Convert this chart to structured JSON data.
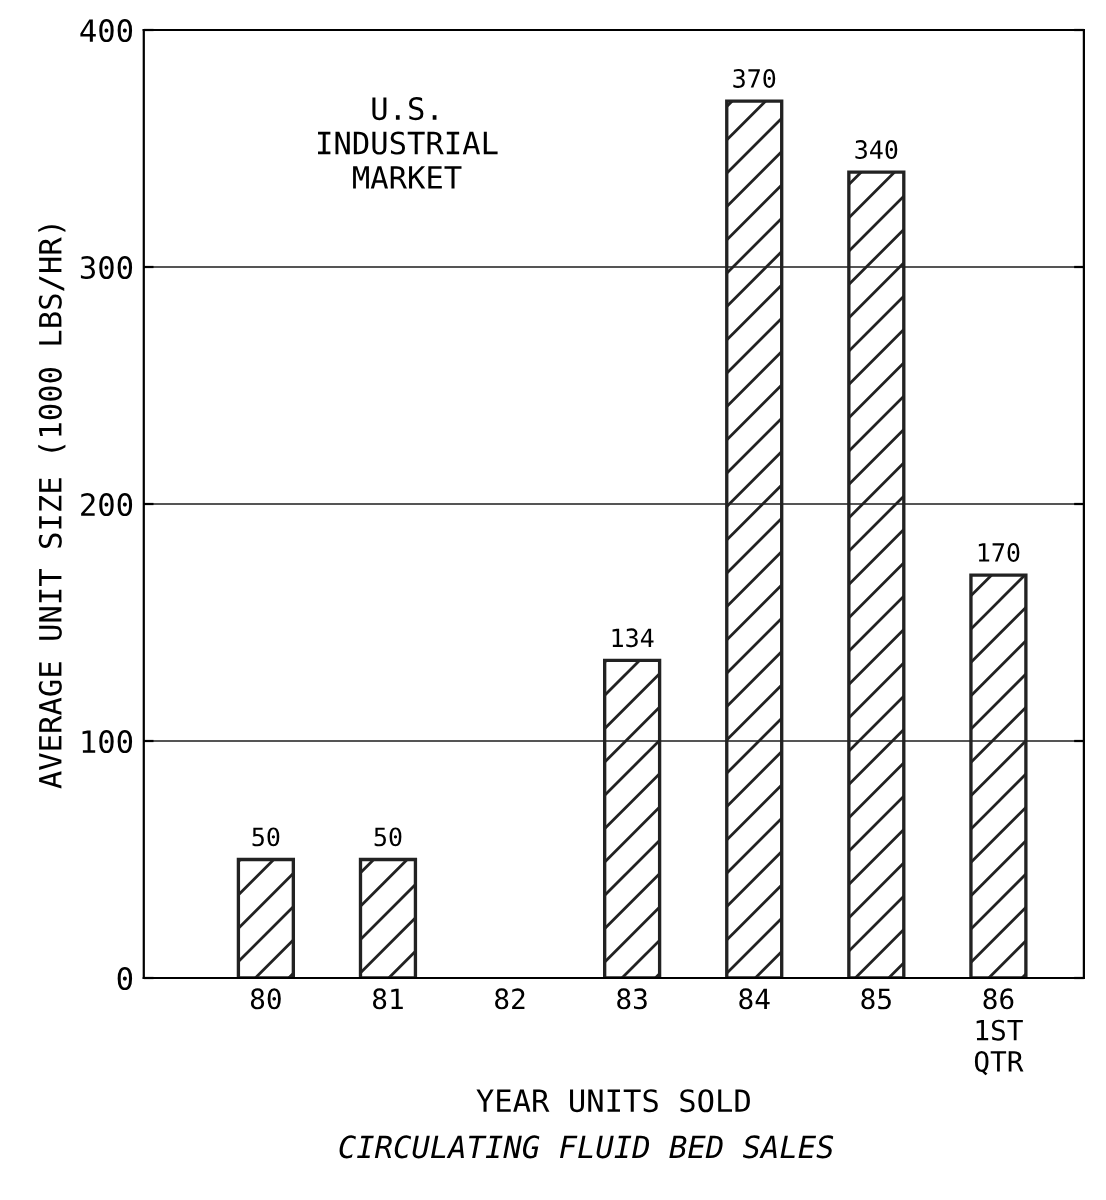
{
  "chart_data": {
    "type": "bar",
    "title": "CIRCULATING FLUID BED SALES",
    "xlabel": "YEAR UNITS SOLD",
    "ylabel": "AVERAGE UNIT SIZE (1000 LBS/HR)",
    "categories": [
      "80",
      "81",
      "82",
      "83",
      "84",
      "85",
      "86\n1ST\nQTR"
    ],
    "values": [
      50,
      50,
      null,
      134,
      370,
      340,
      170
    ],
    "value_labels": [
      "50",
      "50",
      null,
      "134",
      "370",
      "340",
      "170"
    ],
    "color": "#222222",
    "ylim": [
      0,
      400
    ],
    "yticks": [
      0,
      100,
      200,
      300,
      400
    ],
    "grid": "y",
    "annotations": [
      "U.S.\nINDUSTRIAL\nMARKET"
    ]
  }
}
